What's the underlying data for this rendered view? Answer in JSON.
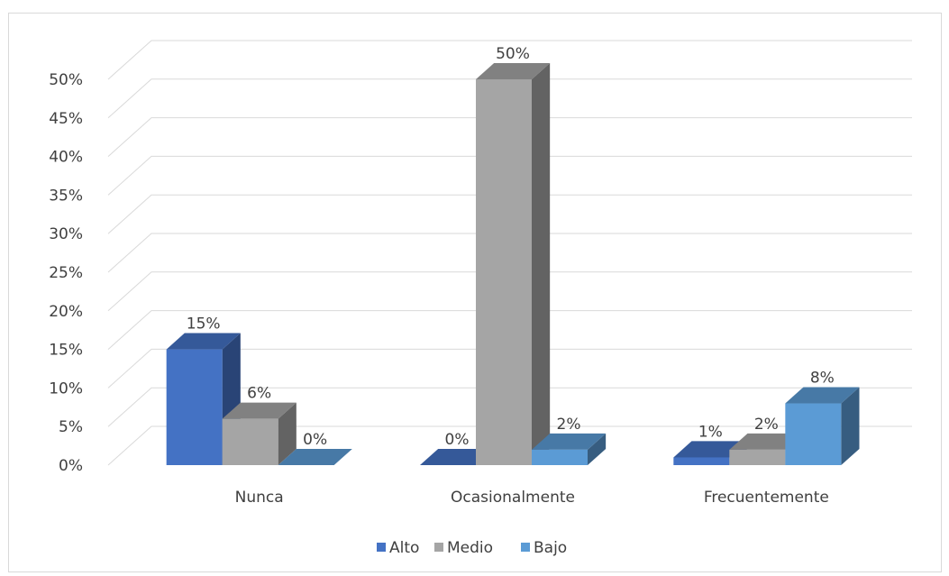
{
  "chart_data": {
    "type": "bar",
    "title": "",
    "xlabel": "",
    "ylabel": "",
    "ylim": [
      0,
      50
    ],
    "yticks": [
      "0%",
      "5%",
      "10%",
      "15%",
      "20%",
      "25%",
      "30%",
      "35%",
      "40%",
      "45%",
      "50%"
    ],
    "categories": [
      "Nunca",
      "Ocasionalmente",
      "Frecuentemente"
    ],
    "series": [
      {
        "name": "Alto",
        "values": [
          15,
          0,
          1
        ],
        "labels": [
          "15%",
          "0%",
          "1%"
        ],
        "color": "#4472c4"
      },
      {
        "name": "Medio",
        "values": [
          6,
          50,
          2
        ],
        "labels": [
          "6%",
          "50%",
          "2%"
        ],
        "color": "#a5a5a5"
      },
      {
        "name": "Bajo",
        "values": [
          0,
          2,
          8
        ],
        "labels": [
          "0%",
          "2%",
          "8%"
        ],
        "color": "#5b9bd5"
      }
    ],
    "grid": true,
    "legend": "bottom",
    "style": "3d-clustered-column"
  }
}
